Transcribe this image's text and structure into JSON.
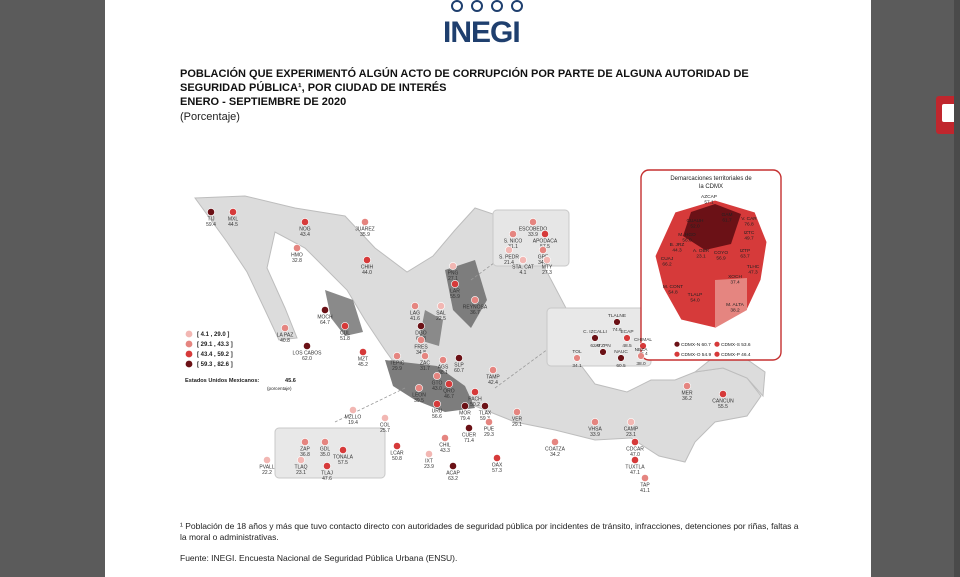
{
  "logo": {
    "text": "INEGI"
  },
  "title": {
    "line1": "POBLACIÓN QUE EXPERIMENTÓ ALGÚN ACTO DE CORRUPCIÓN POR PARTE DE ALGUNA AUTORIDAD DE",
    "line2": "SEGURIDAD PÚBLICA¹, POR CIUDAD DE INTERÉS",
    "line3": "ENERO - SEPTIEMBRE DE 2020"
  },
  "subtitle": "(Porcentaje)",
  "legend": {
    "ranges": [
      {
        "label": "[ 4.1 , 29.0 ]",
        "color": "#f2b7b3"
      },
      {
        "label": "[ 29.1 , 43.3 ]",
        "color": "#e58580"
      },
      {
        "label": "[ 43.4 , 59.2 ]",
        "color": "#d63a3a"
      },
      {
        "label": "[ 59.3 , 82.6 ]",
        "color": "#6b1116"
      }
    ],
    "national_label": "Estados Unidos Mexicanos:",
    "national_value": "45.6",
    "national_unit": "(porcentaje)"
  },
  "cities": [
    {
      "code": "TIJ",
      "value": "59.4",
      "color": "#6b1116"
    },
    {
      "code": "MXL",
      "value": "44.5",
      "color": "#d63a3a"
    },
    {
      "code": "NOG",
      "value": "43.4",
      "color": "#d63a3a"
    },
    {
      "code": "HMO",
      "value": "32.8",
      "color": "#e58580"
    },
    {
      "code": "JUÁREZ",
      "value": "35.9",
      "color": "#e58580"
    },
    {
      "code": "CHIH",
      "value": "44.0",
      "color": "#d63a3a"
    },
    {
      "code": "LA PAZ",
      "value": "40.8",
      "color": "#e58580"
    },
    {
      "code": "LOS CABOS",
      "value": "62.0",
      "color": "#6b1116"
    },
    {
      "code": "MOCH",
      "value": "64.7",
      "color": "#6b1116"
    },
    {
      "code": "CUL",
      "value": "51.8",
      "color": "#d63a3a"
    },
    {
      "code": "MZT",
      "value": "45.2",
      "color": "#d63a3a"
    },
    {
      "code": "LAG",
      "value": "41.6",
      "color": "#e58580"
    },
    {
      "code": "DGO",
      "value": "60.8",
      "color": "#6b1116"
    },
    {
      "code": "SAL",
      "value": "22.5",
      "color": "#f2b7b3"
    },
    {
      "code": "PNG",
      "value": "27.1",
      "color": "#f2b7b3"
    },
    {
      "code": "LAR",
      "value": "55.9",
      "color": "#d63a3a"
    },
    {
      "code": "REYNOSA",
      "value": "36.7",
      "color": "#e58580"
    },
    {
      "code": "ESCOBEDO",
      "value": "33.9",
      "color": "#e58580"
    },
    {
      "code": "S. NICO",
      "value": "31.1",
      "color": "#e58580"
    },
    {
      "code": "APODACA",
      "value": "57.5",
      "color": "#d63a3a"
    },
    {
      "code": "S. PEDR",
      "value": "21.4",
      "color": "#f2b7b3"
    },
    {
      "code": "GPE",
      "value": "34.9",
      "color": "#e58580"
    },
    {
      "code": "STA. CAT",
      "value": "4.1",
      "color": "#f2b7b3"
    },
    {
      "code": "MTY",
      "value": "27.3",
      "color": "#f2b7b3"
    },
    {
      "code": "FRES",
      "value": "34.8",
      "color": "#e58580"
    },
    {
      "code": "ZAC",
      "value": "31.7",
      "color": "#e58580"
    },
    {
      "code": "AGS",
      "value": "38.1",
      "color": "#e58580"
    },
    {
      "code": "SLP",
      "value": "60.7",
      "color": "#6b1116"
    },
    {
      "code": "TEPIC",
      "value": "29.9",
      "color": "#e58580"
    },
    {
      "code": "GTO",
      "value": "43.0",
      "color": "#e58580"
    },
    {
      "code": "LEON",
      "value": "39.5",
      "color": "#e58580"
    },
    {
      "code": "QRO",
      "value": "46.7",
      "color": "#d63a3a"
    },
    {
      "code": "TAMP",
      "value": "42.4",
      "color": "#e58580"
    },
    {
      "code": "PACH",
      "value": "50.2",
      "color": "#d63a3a"
    },
    {
      "code": "TLAX",
      "value": "59.3",
      "color": "#6b1116"
    },
    {
      "code": "MOR",
      "value": "79.4",
      "color": "#6b1116"
    },
    {
      "code": "URU",
      "value": "56.6",
      "color": "#d63a3a"
    },
    {
      "code": "VER",
      "value": "29.1",
      "color": "#e58580"
    },
    {
      "code": "PUE",
      "value": "29.3",
      "color": "#e58580"
    },
    {
      "code": "MZLLO",
      "value": "19.4",
      "color": "#f2b7b3"
    },
    {
      "code": "COL",
      "value": "25.7",
      "color": "#f2b7b3"
    },
    {
      "code": "CUER",
      "value": "71.4",
      "color": "#6b1116"
    },
    {
      "code": "CHIL",
      "value": "43.3",
      "color": "#e58580"
    },
    {
      "code": "ZAP",
      "value": "36.8",
      "color": "#e58580"
    },
    {
      "code": "GDL",
      "value": "35.0",
      "color": "#e58580"
    },
    {
      "code": "TONALA",
      "value": "57.5",
      "color": "#d63a3a"
    },
    {
      "code": "TLAQ",
      "value": "23.1",
      "color": "#f2b7b3"
    },
    {
      "code": "TLAJ",
      "value": "47.6",
      "color": "#d63a3a"
    },
    {
      "code": "PVALL",
      "value": "22.2",
      "color": "#f2b7b3"
    },
    {
      "code": "LCAR",
      "value": "50.8",
      "color": "#d63a3a"
    },
    {
      "code": "IXT",
      "value": "23.9",
      "color": "#f2b7b3"
    },
    {
      "code": "ACAP",
      "value": "63.2",
      "color": "#6b1116"
    },
    {
      "code": "OAX",
      "value": "57.3",
      "color": "#d63a3a"
    },
    {
      "code": "COATZA",
      "value": "34.2",
      "color": "#e58580"
    },
    {
      "code": "VHSA",
      "value": "33.9",
      "color": "#e58580"
    },
    {
      "code": "CAMP",
      "value": "23.1",
      "color": "#f2b7b3"
    },
    {
      "code": "CDCAR",
      "value": "47.0",
      "color": "#d63a3a"
    },
    {
      "code": "TUXTLA",
      "value": "47.1",
      "color": "#d63a3a"
    },
    {
      "code": "TAP",
      "value": "41.1",
      "color": "#e58580"
    },
    {
      "code": "MER",
      "value": "36.2",
      "color": "#e58580"
    },
    {
      "code": "CANCUN",
      "value": "55.5",
      "color": "#d63a3a"
    }
  ],
  "edomex": [
    {
      "code": "TLALNE",
      "value": "74.6",
      "color": "#6b1116"
    },
    {
      "code": "C. IZCALLI",
      "value": "62.9",
      "color": "#6b1116"
    },
    {
      "code": "ECAP",
      "value": "48.5",
      "color": "#d63a3a"
    },
    {
      "code": "CHIMAL",
      "value": "49.4",
      "color": "#d63a3a"
    },
    {
      "code": "ATZPN",
      "value": "",
      "color": "#6b1116"
    },
    {
      "code": "NEZA",
      "value": "38.0",
      "color": "#e58580"
    },
    {
      "code": "TOL",
      "value": "34.1",
      "color": "#e58580"
    },
    {
      "code": "NAUC",
      "value": "60.5",
      "color": "#6b1116"
    }
  ],
  "cdmx": {
    "title_line1": "Demarcaciones territoriales de",
    "title_line2": "la CDMX",
    "items": [
      {
        "code": "AZCAP",
        "value": "57.1"
      },
      {
        "code": "GAM",
        "value": "61.7"
      },
      {
        "code": "V. CAR",
        "value": "76.8"
      },
      {
        "code": "CUAUH",
        "value": "52.0"
      },
      {
        "code": "M. HGO",
        "value": "56.0"
      },
      {
        "code": "IZTC",
        "value": "49.7"
      },
      {
        "code": "B. JRZ",
        "value": "44.3"
      },
      {
        "code": "A. OBR",
        "value": "23.1"
      },
      {
        "code": "COYO",
        "value": "56.9"
      },
      {
        "code": "IZTP",
        "value": "63.7"
      },
      {
        "code": "CUAJ",
        "value": "66.2"
      },
      {
        "code": "TLHC",
        "value": "47.3"
      },
      {
        "code": "XOCH",
        "value": "37.4"
      },
      {
        "code": "M. CONT",
        "value": "54.8"
      },
      {
        "code": "TLALP",
        "value": "54.0"
      },
      {
        "code": "M. ALTA",
        "value": "38.2"
      }
    ],
    "zones": [
      {
        "label": "CDMX-N",
        "value": "60.7",
        "color": "#6b1116"
      },
      {
        "label": "CDMX-S",
        "value": "53.6",
        "color": "#d63a3a"
      },
      {
        "label": "CDMX-O",
        "value": "54.9",
        "color": "#d63a3a"
      },
      {
        "label": "CDMX-P",
        "value": "46.4",
        "color": "#d63a3a"
      }
    ]
  },
  "footnote": "¹ Población de 18 años y más que tuvo contacto directo con autoridades de seguridad pública por incidentes de tránsito, infracciones, detenciones por riñas, faltas a la moral o administrativas.",
  "source": "Fuente: INEGI. Encuesta Nacional de Seguridad Pública Urbana (ENSU)."
}
